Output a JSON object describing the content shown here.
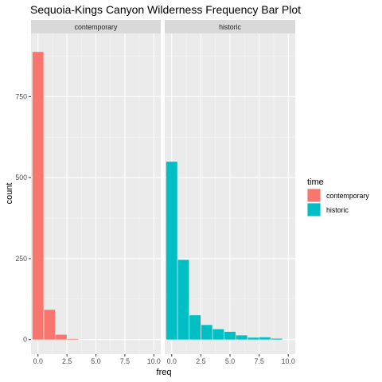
{
  "chart_data": {
    "type": "bar",
    "title": "Sequoia-Kings Canyon Wilderness Frequency Bar Plot",
    "xlabel": "freq",
    "ylabel": "count",
    "xlim": [
      -0.6,
      10.6
    ],
    "ylim": [
      -45,
      945
    ],
    "x_ticks": [
      0,
      2.5,
      5,
      7.5,
      10
    ],
    "x_tick_labels": [
      "0.0",
      "2.5",
      "5.0",
      "7.5",
      "10.0"
    ],
    "y_ticks": [
      0,
      250,
      500,
      750
    ],
    "y_tick_labels": [
      "0",
      "250",
      "500",
      "750"
    ],
    "bar_width": 0.95,
    "grid": true,
    "legend": {
      "title": "time",
      "position": "right",
      "entries": [
        {
          "label": "contemporary",
          "color": "#F8766D"
        },
        {
          "label": "historic",
          "color": "#00BFC4"
        }
      ]
    },
    "panels": [
      {
        "strip": "contemporary",
        "color": "#F8766D",
        "x": [
          0,
          1,
          2,
          3,
          4,
          5,
          6,
          7,
          8,
          9
        ],
        "values": [
          888,
          92,
          15,
          2,
          0,
          0,
          0,
          0,
          0,
          0
        ]
      },
      {
        "strip": "historic",
        "color": "#00BFC4",
        "x": [
          0,
          1,
          2,
          3,
          4,
          5,
          6,
          7,
          8,
          9
        ],
        "values": [
          549,
          246,
          75,
          45,
          32,
          24,
          13,
          6,
          7,
          3
        ]
      }
    ]
  }
}
